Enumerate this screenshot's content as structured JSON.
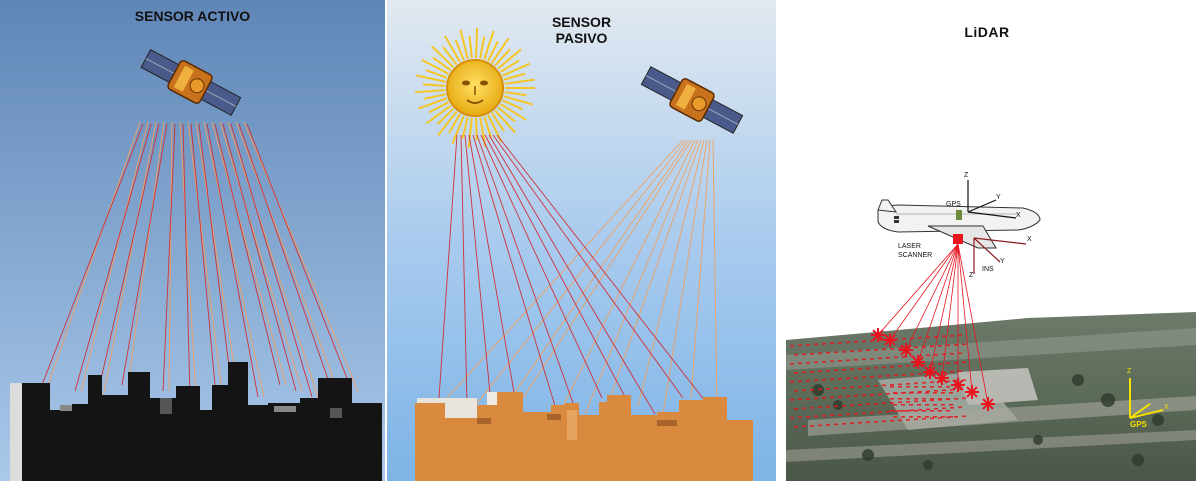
{
  "panels": {
    "active": {
      "title": "SENSOR ACTIVO"
    },
    "passive": {
      "title_line1": "SENSOR",
      "title_line2": "PASIVO"
    },
    "lidar": {
      "title": "LiDAR",
      "labels": {
        "gps_on_plane": "GPS",
        "laser_line1": "LASER",
        "laser_line2": "SCANNER",
        "ins": "INS",
        "axis_z": "Z",
        "axis_y": "Y",
        "axis_x": "X",
        "gps_ground": "GPS"
      }
    }
  },
  "colors": {
    "active_sky_top": "#5f86b7",
    "active_sky_bottom": "#a8c8ea",
    "passive_sky_top": "#dde6f0",
    "passive_sky_bottom": "#7fb6e8",
    "ray_red": "#d0303a",
    "ray_orange": "#f0a060",
    "city_black": "#141414",
    "city_orange": "#d98a3f",
    "sun": "#f4c21a",
    "laser_red": "#e8141e"
  },
  "icons": [
    "satellite-icon",
    "sun-icon",
    "airplane-icon"
  ]
}
